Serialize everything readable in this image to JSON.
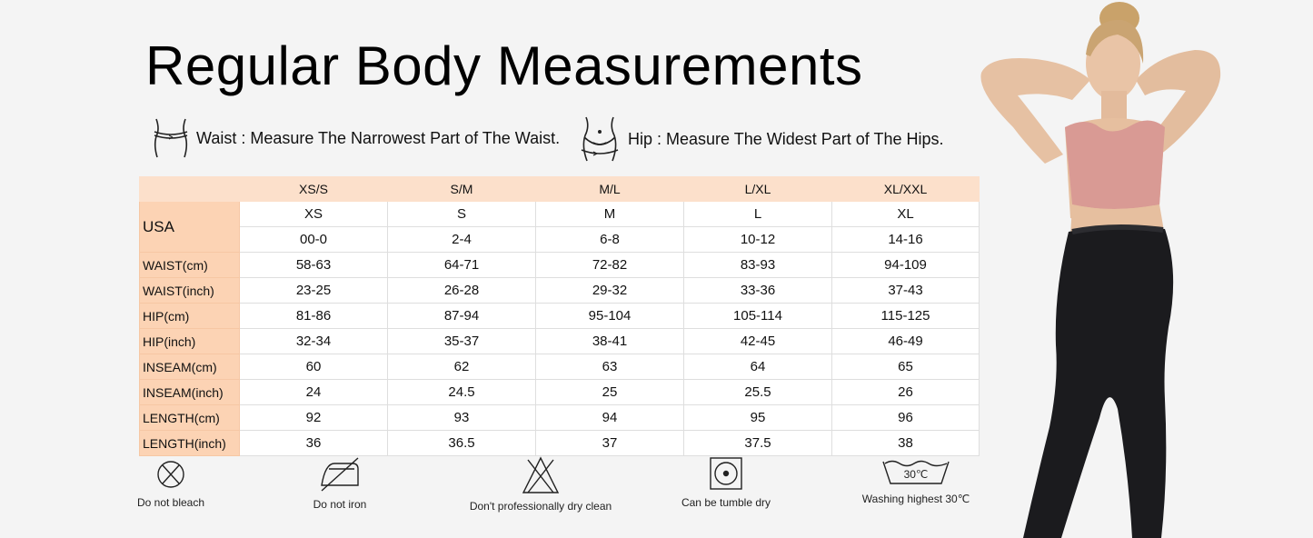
{
  "title": "Regular Body Measurements",
  "instructions": {
    "waist": "Waist : Measure The Narrowest Part of The Waist.",
    "hip": "Hip : Measure The Widest Part of The Hips."
  },
  "table": {
    "header": [
      "XS/S",
      "S/M",
      "M/L",
      "L/XL",
      "XL/XXL"
    ],
    "usa_label": "USA",
    "usa_rows": [
      [
        "XS",
        "S",
        "M",
        "L",
        "XL"
      ],
      [
        "00-0",
        "2-4",
        "6-8",
        "10-12",
        "14-16"
      ]
    ],
    "rows": [
      {
        "label": "WAIST(cm)",
        "values": [
          "58-63",
          "64-71",
          "72-82",
          "83-93",
          "94-109"
        ]
      },
      {
        "label": "WAIST(inch)",
        "values": [
          "23-25",
          "26-28",
          "29-32",
          "33-36",
          "37-43"
        ]
      },
      {
        "label": "HIP(cm)",
        "values": [
          "81-86",
          "87-94",
          "95-104",
          "105-114",
          "115-125"
        ]
      },
      {
        "label": "HIP(inch)",
        "values": [
          "32-34",
          "35-37",
          "38-41",
          "42-45",
          "46-49"
        ]
      },
      {
        "label": "INSEAM(cm)",
        "values": [
          "60",
          "62",
          "63",
          "64",
          "65"
        ]
      },
      {
        "label": "INSEAM(inch)",
        "values": [
          "24",
          "24.5",
          "25",
          "25.5",
          "26"
        ]
      },
      {
        "label": "LENGTH(cm)",
        "values": [
          "92",
          "93",
          "94",
          "95",
          "96"
        ]
      },
      {
        "label": "LENGTH(inch)",
        "values": [
          "36",
          "36.5",
          "37",
          "37.5",
          "38"
        ]
      }
    ]
  },
  "care": [
    {
      "icon": "no-bleach-icon",
      "label": "Do not bleach"
    },
    {
      "icon": "no-iron-icon",
      "label": "Do not iron"
    },
    {
      "icon": "no-dry-clean-icon",
      "label": "Don't professionally dry clean"
    },
    {
      "icon": "tumble-dry-icon",
      "label": "Can be tumble dry"
    },
    {
      "icon": "wash-30-icon",
      "label": "Washing highest 30℃",
      "temp": "30℃"
    }
  ],
  "colors": {
    "header_bg": "#fce0cb",
    "label_bg": "#fcd3b4",
    "cell_bg": "#ffffff",
    "top_color": "#d99a94",
    "leggings_color": "#1b1b1e"
  }
}
